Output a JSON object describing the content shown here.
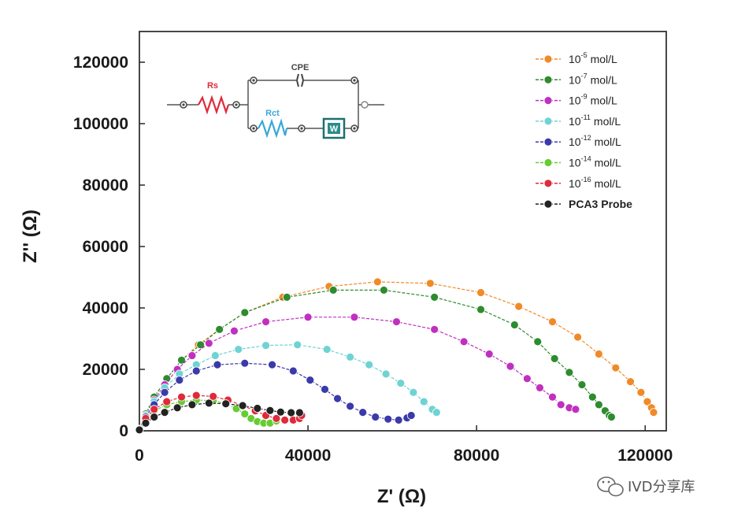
{
  "chart_data": {
    "type": "scatter",
    "xlabel": "Z' (Ω)",
    "ylabel": "Z'' (Ω)",
    "xlim": [
      0,
      125000
    ],
    "ylim": [
      0,
      130000
    ],
    "xticks": [
      "0",
      "40000",
      "80000",
      "120000"
    ],
    "yticks": [
      "0",
      "20000",
      "40000",
      "60000",
      "80000",
      "100000",
      "120000"
    ],
    "legend_position": "top-right",
    "grid": false,
    "series": [
      {
        "name": "10-5 mol/L",
        "base": "10",
        "exp": "-5",
        "unit": "mol/L",
        "color": "#f08a28",
        "points": [
          [
            0,
            500
          ],
          [
            1500,
            5500
          ],
          [
            3500,
            11000
          ],
          [
            6500,
            17000
          ],
          [
            10000,
            23000
          ],
          [
            14000,
            28000
          ],
          [
            19000,
            33000
          ],
          [
            25000,
            38500
          ],
          [
            34000,
            43500
          ],
          [
            45000,
            47000
          ],
          [
            56500,
            48500
          ],
          [
            69000,
            48000
          ],
          [
            81000,
            45000
          ],
          [
            90000,
            40500
          ],
          [
            98000,
            35500
          ],
          [
            104000,
            30500
          ],
          [
            109000,
            25000
          ],
          [
            113000,
            20500
          ],
          [
            116500,
            16000
          ],
          [
            119000,
            12500
          ],
          [
            120500,
            9500
          ],
          [
            121500,
            7500
          ],
          [
            122000,
            6000
          ]
        ]
      },
      {
        "name": "10-7 mol/L",
        "base": "10",
        "exp": "-7",
        "unit": "mol/L",
        "color": "#2e8b2e",
        "points": [
          [
            0,
            500
          ],
          [
            1500,
            5500
          ],
          [
            3500,
            11000
          ],
          [
            6500,
            17000
          ],
          [
            10000,
            23000
          ],
          [
            14500,
            28000
          ],
          [
            19000,
            33000
          ],
          [
            25000,
            38500
          ],
          [
            35000,
            43500
          ],
          [
            46000,
            45800
          ],
          [
            58000,
            45800
          ],
          [
            70000,
            43500
          ],
          [
            81000,
            39500
          ],
          [
            89000,
            34500
          ],
          [
            94500,
            29000
          ],
          [
            98500,
            23500
          ],
          [
            102000,
            19000
          ],
          [
            105000,
            15000
          ],
          [
            107500,
            11000
          ],
          [
            109000,
            8500
          ],
          [
            110500,
            6500
          ],
          [
            111500,
            5000
          ],
          [
            112000,
            4500
          ]
        ]
      },
      {
        "name": "10-9 mol/L",
        "base": "10",
        "exp": "-9",
        "unit": "mol/L",
        "color": "#c030c0",
        "points": [
          [
            0,
            500
          ],
          [
            1500,
            5000
          ],
          [
            3500,
            10000
          ],
          [
            6000,
            15000
          ],
          [
            9000,
            20000
          ],
          [
            12500,
            24500
          ],
          [
            16500,
            28500
          ],
          [
            22500,
            32500
          ],
          [
            30000,
            35500
          ],
          [
            40000,
            37000
          ],
          [
            51000,
            37000
          ],
          [
            61000,
            35500
          ],
          [
            70000,
            33000
          ],
          [
            77000,
            29000
          ],
          [
            83000,
            25000
          ],
          [
            88000,
            21000
          ],
          [
            92000,
            17000
          ],
          [
            95000,
            14000
          ],
          [
            98000,
            11000
          ],
          [
            100000,
            8500
          ],
          [
            102000,
            7500
          ],
          [
            103500,
            7000
          ]
        ]
      },
      {
        "name": "10-11 mol/L",
        "base": "10",
        "exp": "-11",
        "unit": "mol/L",
        "color": "#6fd3d3",
        "points": [
          [
            0,
            500
          ],
          [
            1500,
            5000
          ],
          [
            3500,
            9500
          ],
          [
            6000,
            14000
          ],
          [
            9500,
            18500
          ],
          [
            13500,
            21500
          ],
          [
            18000,
            24500
          ],
          [
            23500,
            26500
          ],
          [
            30000,
            27800
          ],
          [
            37500,
            28000
          ],
          [
            44500,
            26500
          ],
          [
            50000,
            24000
          ],
          [
            54500,
            21500
          ],
          [
            58500,
            18500
          ],
          [
            62000,
            15500
          ],
          [
            65000,
            12500
          ],
          [
            67500,
            9500
          ],
          [
            69500,
            7000
          ],
          [
            70500,
            6000
          ]
        ]
      },
      {
        "name": "10-12 mol/L",
        "base": "10",
        "exp": "-12",
        "unit": "mol/L",
        "color": "#3a3aaa",
        "points": [
          [
            0,
            500
          ],
          [
            1500,
            4500
          ],
          [
            3500,
            8500
          ],
          [
            6000,
            12500
          ],
          [
            9500,
            16500
          ],
          [
            13500,
            19500
          ],
          [
            18500,
            21500
          ],
          [
            25000,
            22000
          ],
          [
            31500,
            21500
          ],
          [
            36500,
            19500
          ],
          [
            40500,
            16500
          ],
          [
            44000,
            13500
          ],
          [
            47000,
            10500
          ],
          [
            50000,
            8000
          ],
          [
            53000,
            6000
          ],
          [
            56000,
            4500
          ],
          [
            59000,
            3800
          ],
          [
            61500,
            3500
          ],
          [
            63500,
            4200
          ],
          [
            64500,
            5000
          ]
        ]
      },
      {
        "name": "10-14 mol/L",
        "base": "10",
        "exp": "-14",
        "unit": "mol/L",
        "color": "#66cc33",
        "points": [
          [
            0,
            400
          ],
          [
            1500,
            3500
          ],
          [
            3500,
            6500
          ],
          [
            6500,
            8500
          ],
          [
            10000,
            9500
          ],
          [
            13500,
            10000
          ],
          [
            17500,
            9800
          ],
          [
            20500,
            8800
          ],
          [
            23000,
            7200
          ],
          [
            25000,
            5500
          ],
          [
            26500,
            4000
          ],
          [
            28000,
            3000
          ],
          [
            29500,
            2500
          ],
          [
            31000,
            2500
          ],
          [
            32500,
            3200
          ]
        ]
      },
      {
        "name": "10-16 mol/L",
        "base": "10",
        "exp": "-16",
        "unit": "mol/L",
        "color": "#e02a3a",
        "points": [
          [
            0,
            400
          ],
          [
            1500,
            4000
          ],
          [
            3500,
            7000
          ],
          [
            6500,
            9500
          ],
          [
            10000,
            11000
          ],
          [
            13500,
            11500
          ],
          [
            17500,
            11200
          ],
          [
            21000,
            10000
          ],
          [
            24500,
            8200
          ],
          [
            27500,
            6500
          ],
          [
            30000,
            5000
          ],
          [
            32500,
            4000
          ],
          [
            34500,
            3500
          ],
          [
            36500,
            3500
          ],
          [
            38000,
            4000
          ],
          [
            38500,
            5000
          ]
        ]
      },
      {
        "name": "PCA3 Probe",
        "base": "",
        "exp": "",
        "unit": "",
        "color": "#222222",
        "points": [
          [
            0,
            300
          ],
          [
            1500,
            2500
          ],
          [
            3500,
            4500
          ],
          [
            6000,
            6000
          ],
          [
            9000,
            7500
          ],
          [
            12500,
            8500
          ],
          [
            16500,
            9000
          ],
          [
            20500,
            8800
          ],
          [
            24500,
            8200
          ],
          [
            28000,
            7300
          ],
          [
            31000,
            6600
          ],
          [
            33500,
            6100
          ],
          [
            36000,
            5900
          ],
          [
            38000,
            5900
          ]
        ]
      }
    ]
  },
  "inset_circuit": {
    "rs_label": "Rs",
    "cpe_label": "CPE",
    "rct_label": "Rct",
    "w_label": "W"
  },
  "watermark": {
    "text": "IVD分享库",
    "icon": "wechat-icon"
  }
}
